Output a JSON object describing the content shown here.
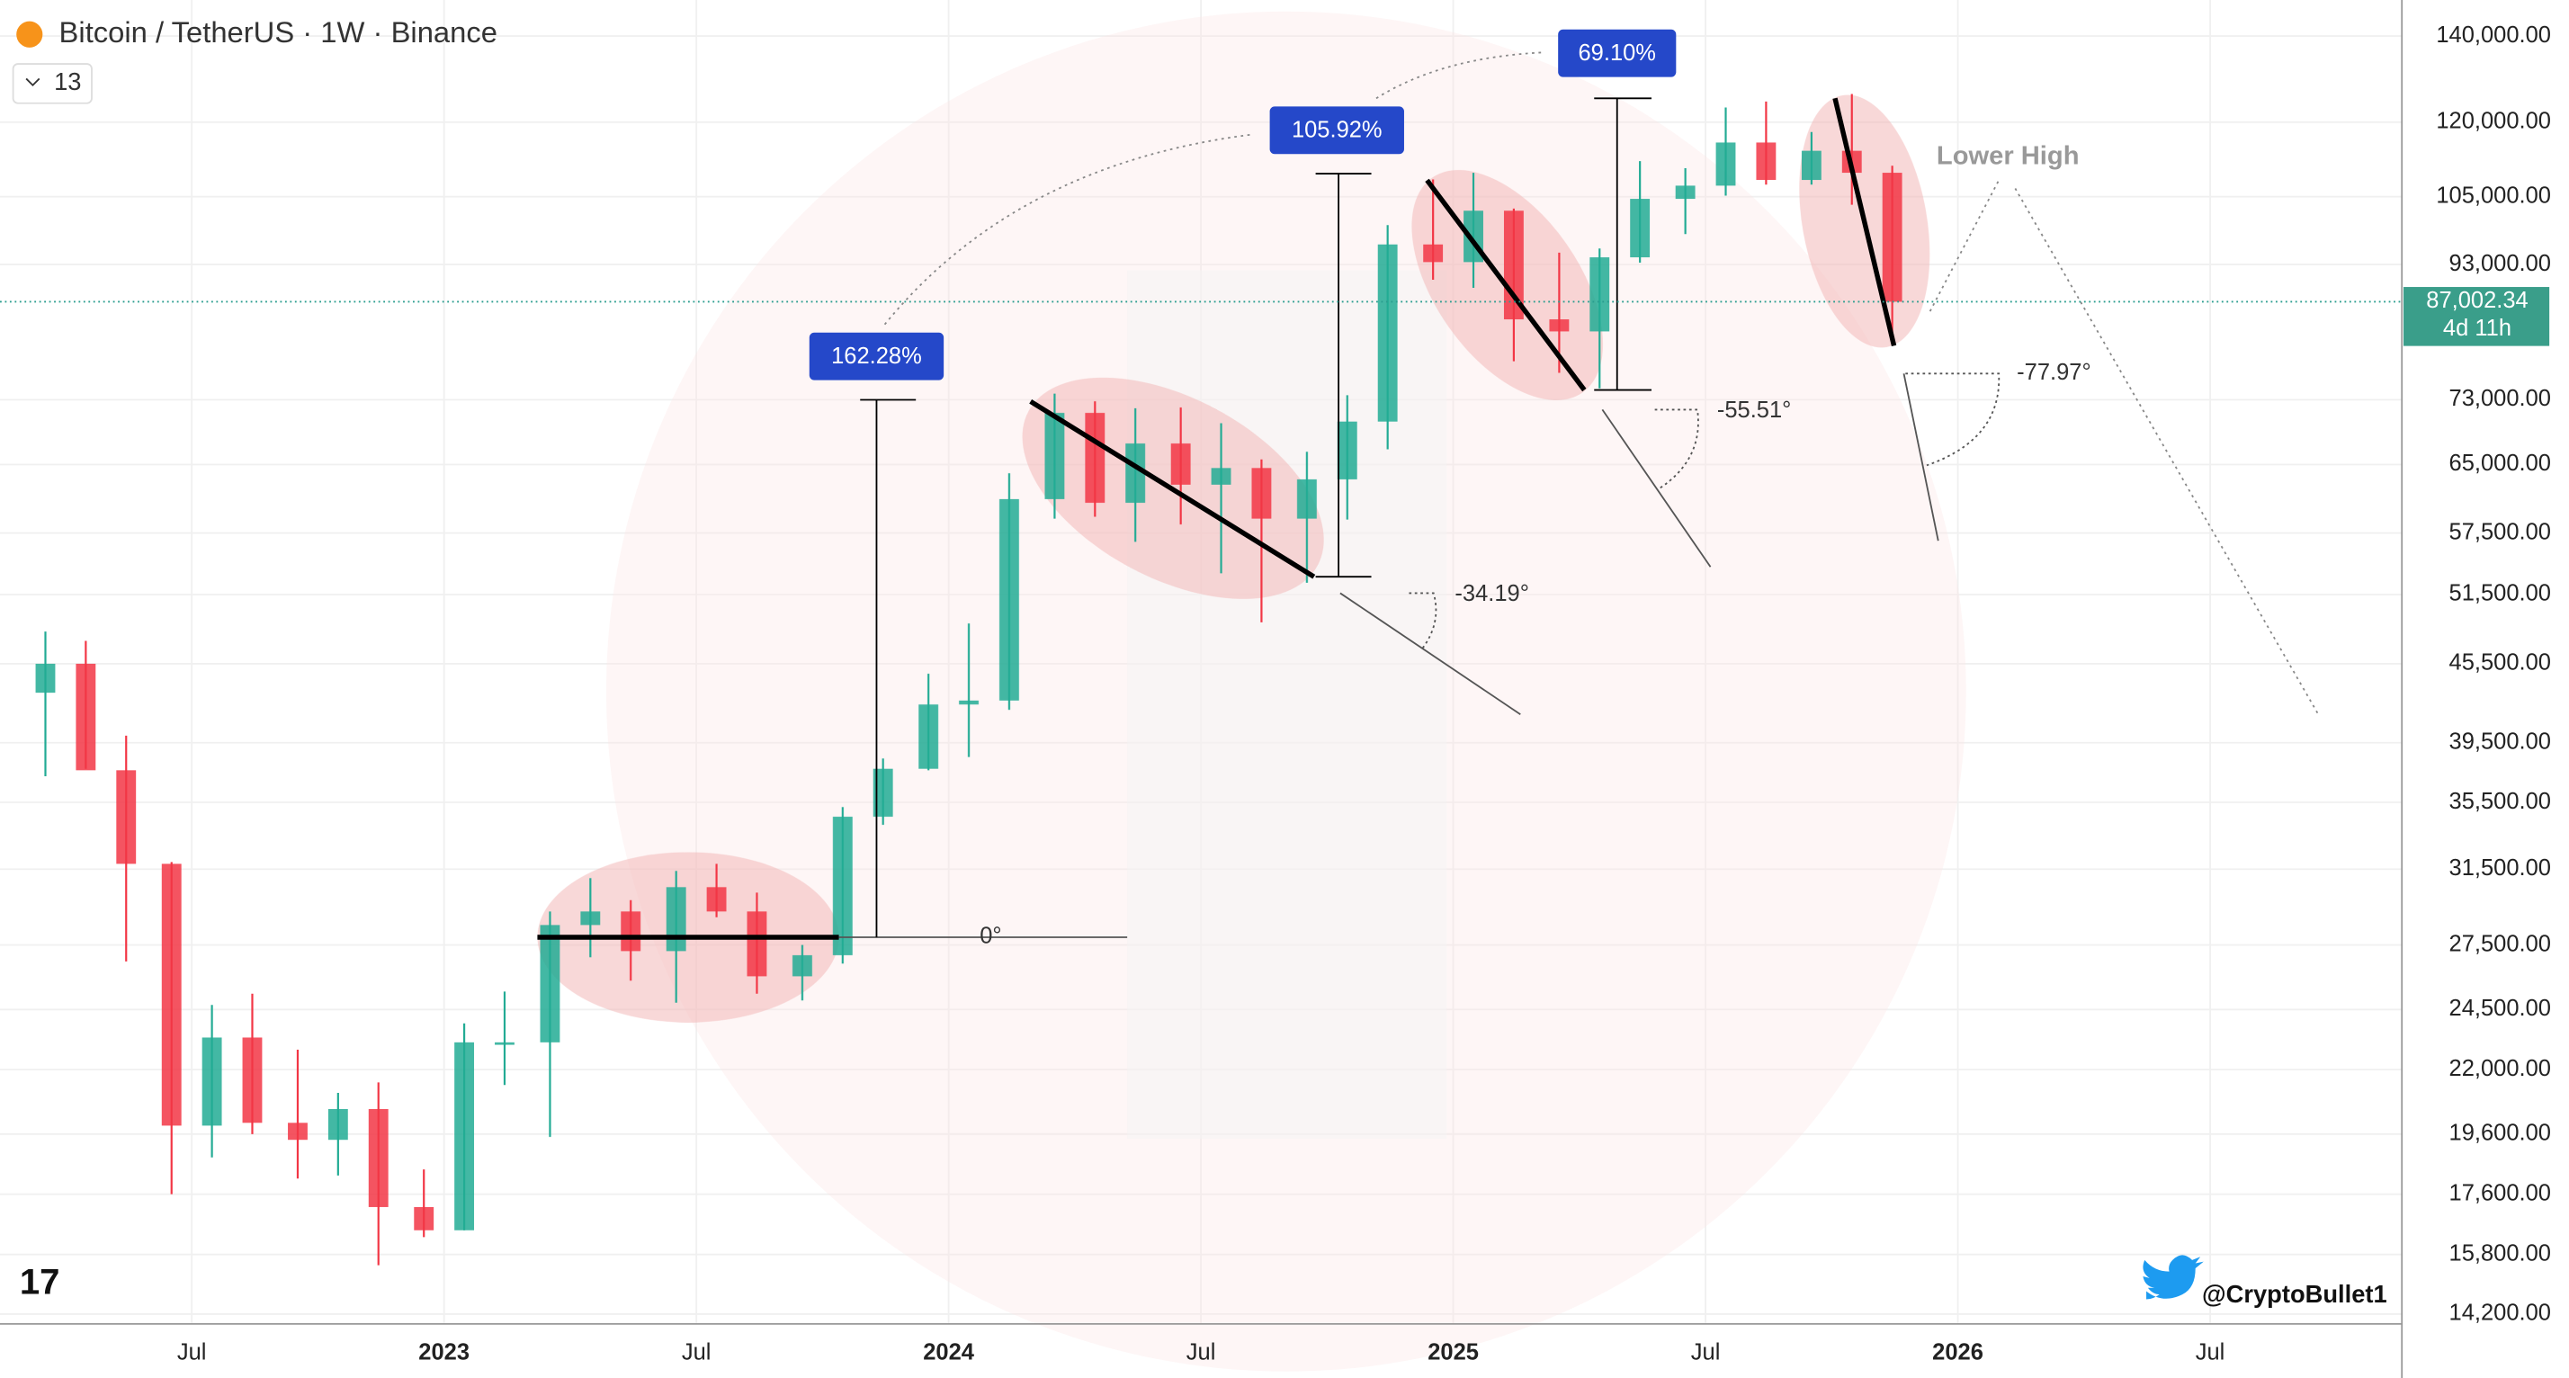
{
  "chart_data": {
    "type": "candlestick",
    "title": "Bitcoin / TetherUS · 1W · Binance",
    "indicator_count": "13",
    "up_color": "#22ab94",
    "down_color": "#f23645",
    "log_scale": true,
    "grid": true,
    "x": [
      2022.21,
      2022.29,
      2022.37,
      2022.46,
      2022.54,
      2022.62,
      2022.71,
      2022.79,
      2022.87,
      2022.96,
      2023.04,
      2023.12,
      2023.21,
      2023.29,
      2023.37,
      2023.46,
      2023.54,
      2023.62,
      2023.71,
      2023.79,
      2023.87,
      2023.96,
      2024.04,
      2024.12,
      2024.21,
      2024.29,
      2024.37,
      2024.46,
      2024.54,
      2024.62,
      2024.71,
      2024.79,
      2024.87,
      2024.96,
      2025.04,
      2025.12,
      2025.21,
      2025.29,
      2025.37,
      2025.46,
      2025.54,
      2025.62,
      2025.71,
      2025.79,
      2025.87
    ],
    "open": [
      43200,
      45500,
      37600,
      31800,
      19900,
      23300,
      20000,
      19400,
      20500,
      17200,
      16500,
      23100,
      23100,
      28500,
      29200,
      27200,
      30500,
      29200,
      26000,
      27000,
      34600,
      37700,
      42300,
      42600,
      61100,
      71300,
      60700,
      67500,
      62700,
      64600,
      59000,
      63300,
      70200,
      96400,
      93400,
      102400,
      84300,
      82500,
      94200,
      104600,
      107100,
      115700,
      108200,
      114000,
      109600
    ],
    "high": [
      48200,
      47400,
      40000,
      31900,
      24700,
      25200,
      22800,
      21100,
      21500,
      18400,
      23900,
      25300,
      29200,
      31000,
      29800,
      31400,
      31800,
      30200,
      27500,
      35200,
      38400,
      44700,
      48900,
      64000,
      73800,
      72800,
      71900,
      72000,
      70000,
      65600,
      66500,
      73600,
      99800,
      108300,
      109600,
      102800,
      95000,
      95700,
      111900,
      110500,
      123200,
      124500,
      117900,
      126200,
      111000
    ],
    "low": [
      37200,
      37700,
      26700,
      17600,
      18800,
      19600,
      18100,
      18200,
      15500,
      16300,
      16500,
      21400,
      19500,
      26900,
      25800,
      24800,
      28900,
      25200,
      24900,
      26600,
      34100,
      37600,
      38500,
      41900,
      59000,
      59200,
      56600,
      58400,
      53500,
      49000,
      52600,
      58900,
      66800,
      90500,
      89200,
      78200,
      76600,
      74500,
      93300,
      98200,
      105200,
      107300,
      107300,
      103500,
      80600
    ],
    "close": [
      45500,
      37600,
      31800,
      19900,
      23300,
      20000,
      19400,
      20500,
      17200,
      16500,
      23100,
      23100,
      28500,
      29200,
      27200,
      30500,
      29200,
      26000,
      27000,
      34600,
      37700,
      42300,
      42600,
      61100,
      71300,
      60700,
      67500,
      62700,
      64600,
      59000,
      63300,
      70200,
      96400,
      93400,
      102400,
      84300,
      82500,
      94200,
      104600,
      107100,
      115700,
      108200,
      114000,
      109600,
      87000
    ],
    "xlim": [
      2022.12,
      2026.88
    ],
    "xticks": [
      {
        "value": 2022.5,
        "label": "Jul"
      },
      2023,
      {
        "value": 2023.5,
        "label": "Jul"
      },
      2024,
      {
        "value": 2024.5,
        "label": "Jul"
      },
      2025,
      {
        "value": 2025.5,
        "label": "Jul"
      },
      2026,
      {
        "value": 2026.5,
        "label": "Jul"
      }
    ],
    "ylim": [
      14200,
      140000
    ],
    "yticks": [
      {
        "value": 14200,
        "label": "14,200.00"
      },
      {
        "value": 15800,
        "label": "15,800.00"
      },
      {
        "value": 17600,
        "label": "17,600.00"
      },
      {
        "value": 19600,
        "label": "19,600.00"
      },
      {
        "value": 22000,
        "label": "22,000.00"
      },
      {
        "value": 24500,
        "label": "24,500.00"
      },
      {
        "value": 27500,
        "label": "27,500.00"
      },
      {
        "value": 31500,
        "label": "31,500.00"
      },
      {
        "value": 35500,
        "label": "35,500.00"
      },
      {
        "value": 39500,
        "label": "39,500.00"
      },
      {
        "value": 45500,
        "label": "45,500.00"
      },
      {
        "value": 51500,
        "label": "51,500.00"
      },
      {
        "value": 57500,
        "label": "57,500.00"
      },
      {
        "value": 65000,
        "label": "65,000.00"
      },
      {
        "value": 73000,
        "label": "73,000.00"
      },
      {
        "value": 93000,
        "label": "93,000.00"
      },
      {
        "value": 105000,
        "label": "105,000.00"
      },
      {
        "value": 120000,
        "label": "120,000.00"
      },
      {
        "value": 140000,
        "label": "140,000.00"
      }
    ],
    "last_price": {
      "value": 87002.34,
      "label": "87,002.34"
    },
    "countdown": "4d 11h",
    "annotations": [
      "162.28%",
      "105.92%",
      "69.10%",
      "0°",
      "-34.19°",
      "-55.51°",
      "-77.97°",
      "Lower High"
    ],
    "watermark": "@CryptoBullet1"
  }
}
